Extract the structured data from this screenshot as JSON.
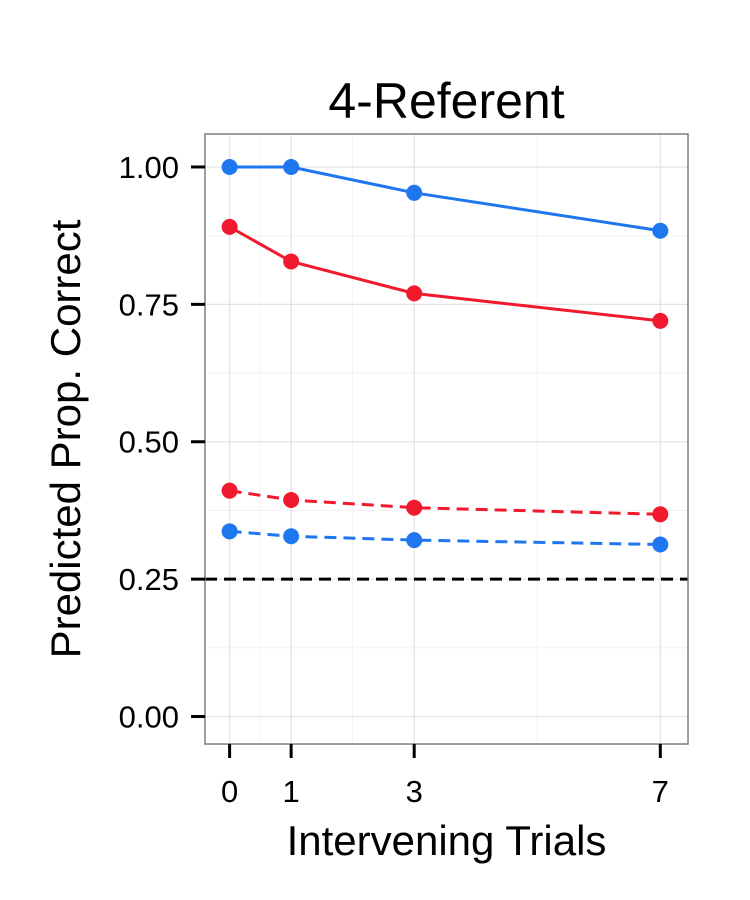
{
  "chart_data": {
    "type": "line",
    "title": "4-Referent",
    "xlabel": "Intervening Trials",
    "ylabel": "Predicted Prop. Correct",
    "x": [
      0,
      1,
      3,
      7
    ],
    "xticks": [
      0,
      1,
      3,
      7
    ],
    "xticklabels": [
      "0",
      "1",
      "3",
      "7"
    ],
    "xlim": [
      -0.4,
      7.45
    ],
    "yticks": [
      0,
      0.25,
      0.5,
      0.75,
      1.0
    ],
    "yticklabels": [
      "0.00",
      "0.25",
      "0.50",
      "0.75",
      "1.00"
    ],
    "ylim": [
      -0.05,
      1.06
    ],
    "grid": true,
    "series": [
      {
        "values": [
          1.0,
          1.0,
          0.953,
          0.884
        ],
        "color": "#1f77f0",
        "linestyle": "solid"
      },
      {
        "values": [
          0.891,
          0.828,
          0.77,
          0.72
        ],
        "color": "#f0192d",
        "linestyle": "solid"
      },
      {
        "values": [
          0.411,
          0.394,
          0.38,
          0.368
        ],
        "color": "#f0192d",
        "linestyle": "dashed"
      },
      {
        "values": [
          0.337,
          0.328,
          0.321,
          0.313
        ],
        "color": "#1f77f0",
        "linestyle": "dashed"
      }
    ],
    "reference_line": {
      "y": 0.25,
      "color": "#000000",
      "linestyle": "dashed"
    }
  }
}
